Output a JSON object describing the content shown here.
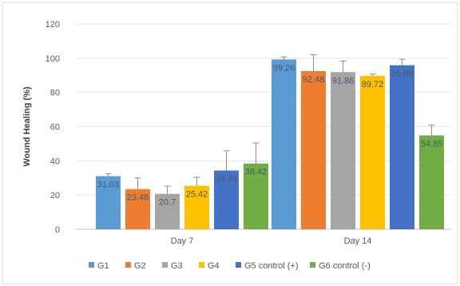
{
  "chart_data": {
    "type": "bar",
    "title": "",
    "ylabel": "Wound Healing (%)",
    "xlabel": "",
    "ylim": [
      0,
      120
    ],
    "yticks": [
      0,
      20,
      40,
      60,
      80,
      100,
      120
    ],
    "grid": true,
    "legend_position": "bottom",
    "categories": [
      "Day 7",
      "Day 14"
    ],
    "series": [
      {
        "name": "G1",
        "color": "#5B9BD5",
        "values": [
          31.03,
          99.26
        ],
        "errors": [
          1.5,
          1.5
        ],
        "labels": [
          "31.03",
          "99.26"
        ]
      },
      {
        "name": "G2",
        "color": "#ED7D31",
        "values": [
          23.48,
          92.48
        ],
        "errors": [
          6.5,
          9.5
        ],
        "labels": [
          "23.48",
          "92.48"
        ]
      },
      {
        "name": "G3",
        "color": "#A5A5A5",
        "values": [
          20.7,
          91.86
        ],
        "errors": [
          4.5,
          6.5
        ],
        "labels": [
          "20.7",
          "91.86"
        ]
      },
      {
        "name": "G4",
        "color": "#FFC000",
        "values": [
          25.42,
          89.72
        ],
        "errors": [
          5,
          1
        ],
        "labels": [
          "25.42",
          "89.72"
        ]
      },
      {
        "name": "G5 control (+)",
        "color": "#4472C4",
        "values": [
          34.34,
          95.88
        ],
        "errors": [
          11.5,
          3.5
        ],
        "labels": [
          "34.34",
          "95.88"
        ]
      },
      {
        "name": "G6 control (-)",
        "color": "#70AD47",
        "values": [
          38.42,
          54.85
        ],
        "errors": [
          12,
          6
        ],
        "labels": [
          "38.42",
          "54.85"
        ]
      }
    ]
  }
}
